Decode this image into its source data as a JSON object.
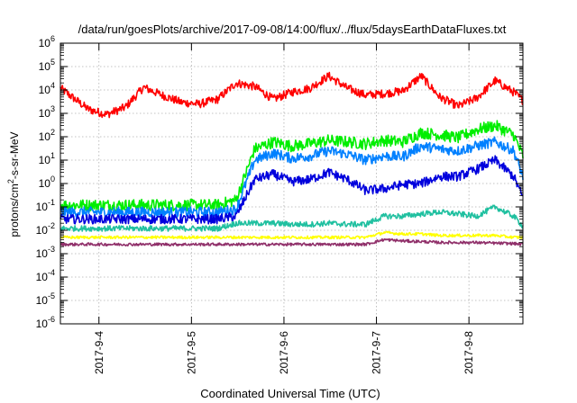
{
  "chart_data": {
    "type": "line",
    "title": "/data/run/goesPlots/archive/2017-09-08/14:00/flux/../flux/5daysEarthDataFluxes.txt",
    "xlabel": "Coordinated Universal Time (UTC)",
    "ylabel": {
      "base": "protons/cm",
      "sup": "2",
      "rest": "-s-sr-MeV"
    },
    "yscale": "log",
    "ylim": [
      1e-06,
      1000000.0
    ],
    "xlim": [
      "2017-09-03 14:00",
      "2017-09-08 14:00"
    ],
    "grid": true,
    "legend": "none",
    "x_ticks": [
      "2017-9-4",
      "2017-9-5",
      "2017-9-6",
      "2017-9-7",
      "2017-9-8"
    ],
    "y_ticks": [
      {
        "base": "10",
        "exp": "6"
      },
      {
        "base": "10",
        "exp": "5"
      },
      {
        "base": "10",
        "exp": "4"
      },
      {
        "base": "10",
        "exp": "3"
      },
      {
        "base": "10",
        "exp": "2"
      },
      {
        "base": "10",
        "exp": "1"
      },
      {
        "base": "10",
        "exp": "0"
      },
      {
        "base": "10",
        "exp": "-1"
      },
      {
        "base": "10",
        "exp": "-2"
      },
      {
        "base": "10",
        "exp": "-3"
      },
      {
        "base": "10",
        "exp": "-4"
      },
      {
        "base": "10",
        "exp": "-5"
      },
      {
        "base": "10",
        "exp": "-6"
      }
    ],
    "x_days": [
      0,
      0.3,
      0.5,
      0.7,
      0.9,
      1.1,
      1.3,
      1.5,
      1.7,
      1.9,
      2.1,
      2.3,
      2.5,
      2.7,
      2.9,
      3.1,
      3.3,
      3.5,
      3.7,
      3.9,
      4.1,
      4.3,
      4.5,
      4.7,
      4.9,
      5.0
    ],
    "series": [
      {
        "color": "#ff0000",
        "noise": 0.18,
        "values": [
          12000,
          1500,
          900,
          1800,
          13000,
          6000,
          3000,
          2500,
          4000,
          20000,
          14000,
          4000,
          8000,
          12000,
          40000,
          12000,
          6000,
          7000,
          9000,
          40000,
          5000,
          2000,
          4500,
          25000,
          8000,
          3500
        ]
      },
      {
        "color": "#00ee00",
        "noise": 0.25,
        "values": [
          0.12,
          0.12,
          0.12,
          0.12,
          0.12,
          0.12,
          0.12,
          0.12,
          0.12,
          0.2,
          30,
          60,
          40,
          50,
          70,
          60,
          50,
          70,
          60,
          150,
          120,
          90,
          200,
          300,
          120,
          15
        ]
      },
      {
        "color": "#0080ff",
        "noise": 0.22,
        "values": [
          0.06,
          0.06,
          0.06,
          0.06,
          0.06,
          0.06,
          0.06,
          0.06,
          0.06,
          0.08,
          10,
          20,
          12,
          15,
          25,
          18,
          10,
          15,
          14,
          40,
          30,
          25,
          40,
          60,
          25,
          2
        ]
      },
      {
        "color": "#0000dd",
        "noise": 0.2,
        "values": [
          0.03,
          0.03,
          0.03,
          0.03,
          0.03,
          0.03,
          0.03,
          0.03,
          0.03,
          0.04,
          1.5,
          2.5,
          1.2,
          1.5,
          3,
          1.5,
          0.5,
          0.6,
          0.9,
          1.0,
          2,
          2,
          4,
          10,
          2,
          0.25
        ]
      },
      {
        "color": "#20c0a0",
        "noise": 0.12,
        "values": [
          0.012,
          0.012,
          0.012,
          0.012,
          0.012,
          0.012,
          0.012,
          0.012,
          0.012,
          0.02,
          0.02,
          0.02,
          0.018,
          0.018,
          0.02,
          0.018,
          0.018,
          0.04,
          0.04,
          0.05,
          0.06,
          0.05,
          0.04,
          0.1,
          0.04,
          0.015
        ]
      },
      {
        "color": "#ffff00",
        "noise": 0.06,
        "values": [
          0.005,
          0.005,
          0.005,
          0.005,
          0.005,
          0.005,
          0.005,
          0.005,
          0.005,
          0.005,
          0.005,
          0.005,
          0.005,
          0.005,
          0.005,
          0.005,
          0.005,
          0.008,
          0.007,
          0.007,
          0.006,
          0.006,
          0.006,
          0.006,
          0.005,
          0.005
        ]
      },
      {
        "color": "#90306a",
        "noise": 0.06,
        "values": [
          0.0025,
          0.0025,
          0.0025,
          0.0025,
          0.0025,
          0.0025,
          0.0025,
          0.0025,
          0.0025,
          0.0025,
          0.0025,
          0.0025,
          0.0025,
          0.0025,
          0.0025,
          0.0025,
          0.0025,
          0.004,
          0.0035,
          0.0033,
          0.003,
          0.003,
          0.003,
          0.0028,
          0.0027,
          0.0025
        ]
      }
    ]
  }
}
